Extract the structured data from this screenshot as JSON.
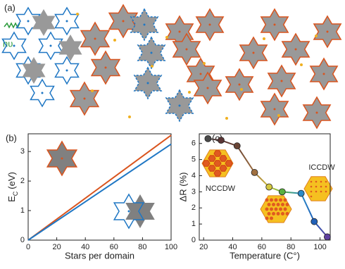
{
  "panel_a": {
    "panel_label": "(a)",
    "annotation": "hυ"
  },
  "chart_data": [
    {
      "type": "line",
      "panel_label": "(b)",
      "x_label": "Stars per domain",
      "y_label": {
        "main": "E",
        "sub": "C",
        "unit": "(eV)"
      },
      "x": [
        0,
        100
      ],
      "xlim": [
        0,
        100
      ],
      "xticks": [
        0,
        20,
        40,
        60,
        80,
        100
      ],
      "ylim": [
        0,
        3.6
      ],
      "yticks": [
        0,
        1,
        2,
        3
      ],
      "series": [
        {
          "color": "#d9541e",
          "values": [
            0,
            3.55
          ]
        },
        {
          "color": "#1f77c4",
          "values": [
            0,
            3.25
          ]
        }
      ]
    },
    {
      "type": "line",
      "panel_label": "(c)",
      "x_label": "Temperature (C°)",
      "y_label": "ΔR (%)",
      "x": [
        23,
        32,
        43,
        55,
        65,
        74,
        87,
        96,
        105
      ],
      "xlim": [
        17,
        107
      ],
      "xticks": [
        20,
        40,
        60,
        80,
        100
      ],
      "ylim": [
        0,
        6.6
      ],
      "yticks": [
        0,
        1,
        2,
        3,
        4,
        5,
        6
      ],
      "annotations": [
        "NCCDW",
        "ICCDW"
      ],
      "series": [
        {
          "colors": [
            "#4a4a4a",
            "#5a3535",
            "#6a4535",
            "#a07040",
            "#d4c840",
            "#5ab040",
            "#2a8ac8",
            "#2060b8",
            "#6040a0"
          ],
          "values": [
            6.3,
            6.2,
            5.85,
            4.2,
            3.3,
            3.0,
            2.9,
            1.15,
            0.2
          ]
        }
      ]
    }
  ]
}
